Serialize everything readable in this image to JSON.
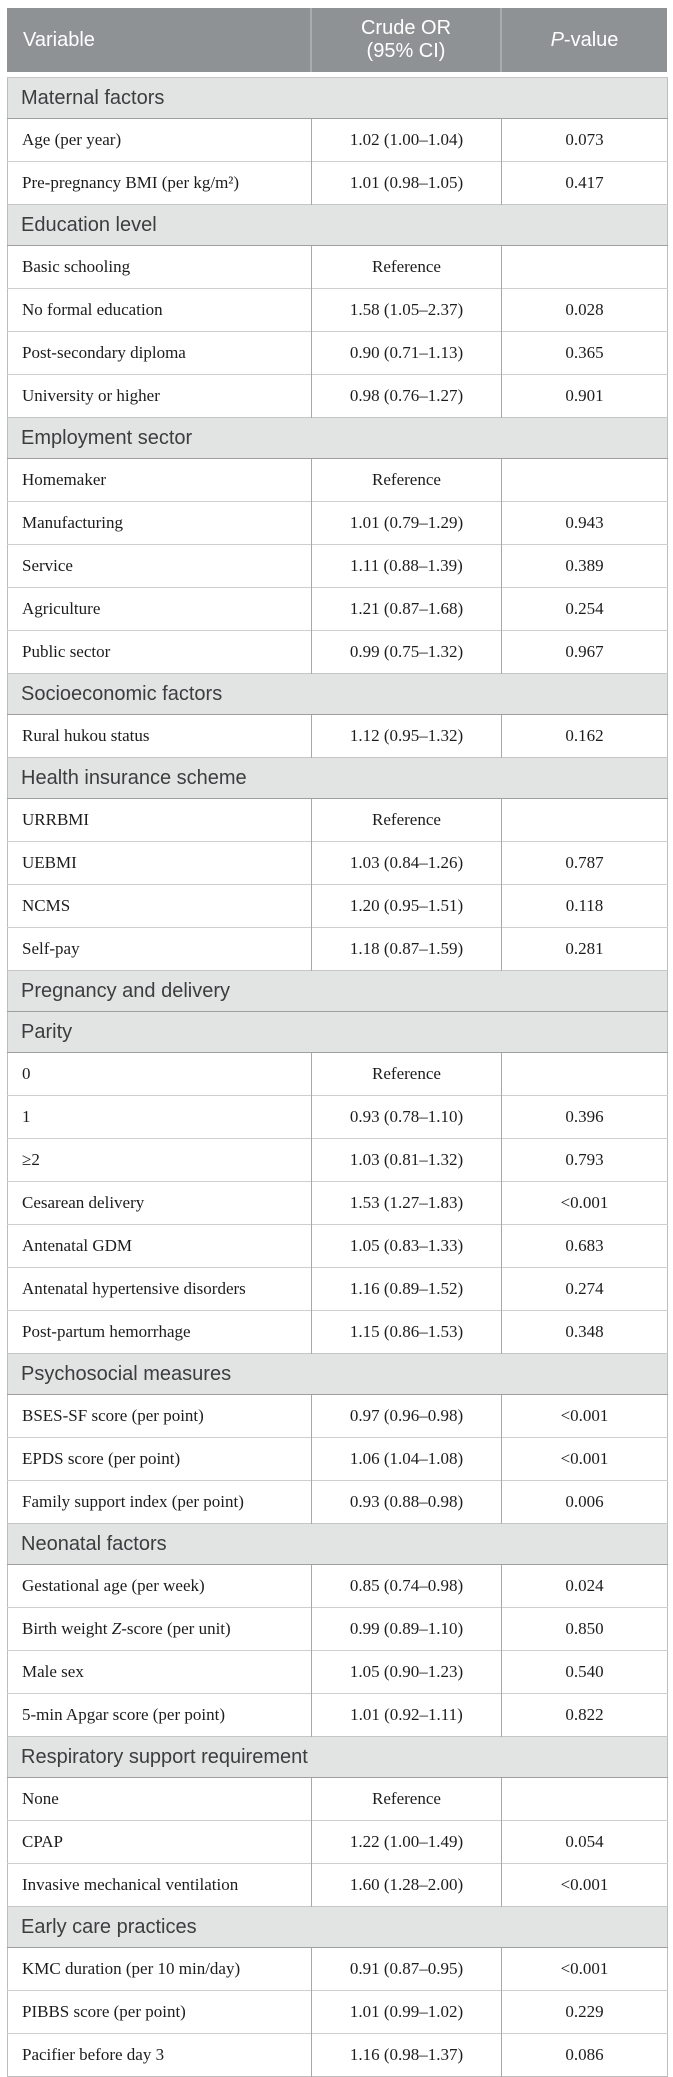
{
  "colors": {
    "header_bg": "#8f9294",
    "header_text": "#ffffff",
    "section_bg": "#e2e3e3",
    "section_text": "#3b3d3f",
    "data_text": "#1c1c1c",
    "grid_line": "#a8a8a8"
  },
  "header": {
    "col_variable": "Variable",
    "col_or_line1": "Crude OR",
    "col_or_line2": "(95% CI)",
    "p_italic": "P",
    "p_rest": "-value"
  },
  "table": {
    "sections": [
      {
        "title": "Maternal factors",
        "rows": [
          {
            "variable": "Age (per year)",
            "or_ci": "1.02 (1.00–1.04)",
            "p": "0.073"
          },
          {
            "variable": "Pre-pregnancy BMI (per kg/m²)",
            "or_ci": "1.01 (0.98–1.05)",
            "p": "0.417"
          }
        ]
      },
      {
        "title": "Education level",
        "rows": [
          {
            "variable": "Basic schooling",
            "or_ci": "Reference",
            "p": ""
          },
          {
            "variable": "No formal education",
            "or_ci": "1.58 (1.05–2.37)",
            "p": "0.028"
          },
          {
            "variable": "Post-secondary diploma",
            "or_ci": "0.90 (0.71–1.13)",
            "p": "0.365"
          },
          {
            "variable": "University or higher",
            "or_ci": "0.98 (0.76–1.27)",
            "p": "0.901"
          }
        ]
      },
      {
        "title": "Employment sector",
        "rows": [
          {
            "variable": "Homemaker",
            "or_ci": "Reference",
            "p": ""
          },
          {
            "variable": "Manufacturing",
            "or_ci": "1.01 (0.79–1.29)",
            "p": "0.943"
          },
          {
            "variable": "Service",
            "or_ci": "1.11 (0.88–1.39)",
            "p": "0.389"
          },
          {
            "variable": "Agriculture",
            "or_ci": "1.21 (0.87–1.68)",
            "p": "0.254"
          },
          {
            "variable": "Public sector",
            "or_ci": "0.99 (0.75–1.32)",
            "p": "0.967"
          }
        ]
      },
      {
        "title": "Socioeconomic factors",
        "rows": [
          {
            "variable": "Rural hukou status",
            "or_ci": "1.12 (0.95–1.32)",
            "p": "0.162"
          }
        ]
      },
      {
        "title": "Health insurance scheme",
        "rows": [
          {
            "variable": "URRBMI",
            "or_ci": "Reference",
            "p": ""
          },
          {
            "variable": "UEBMI",
            "or_ci": "1.03 (0.84–1.26)",
            "p": "0.787"
          },
          {
            "variable": "NCMS",
            "or_ci": "1.20 (0.95–1.51)",
            "p": "0.118"
          },
          {
            "variable": "Self-pay",
            "or_ci": "1.18 (0.87–1.59)",
            "p": "0.281"
          }
        ]
      },
      {
        "title": "Pregnancy and delivery",
        "rows": []
      },
      {
        "title": "Parity",
        "rows": [
          {
            "variable": "0",
            "or_ci": "Reference",
            "p": ""
          },
          {
            "variable": "1",
            "or_ci": "0.93 (0.78–1.10)",
            "p": "0.396"
          },
          {
            "variable": "≥2",
            "or_ci": "1.03 (0.81–1.32)",
            "p": "0.793"
          },
          {
            "variable": "Cesarean delivery",
            "or_ci": "1.53 (1.27–1.83)",
            "p": "<0.001"
          },
          {
            "variable": "Antenatal GDM",
            "or_ci": "1.05 (0.83–1.33)",
            "p": "0.683"
          },
          {
            "variable": "Antenatal hypertensive disorders",
            "or_ci": "1.16 (0.89–1.52)",
            "p": "0.274"
          },
          {
            "variable": "Post-partum hemorrhage",
            "or_ci": "1.15 (0.86–1.53)",
            "p": "0.348"
          }
        ]
      },
      {
        "title": "Psychosocial measures",
        "rows": [
          {
            "variable": "BSES-SF score (per point)",
            "or_ci": "0.97 (0.96–0.98)",
            "p": "<0.001"
          },
          {
            "variable": "EPDS score (per point)",
            "or_ci": "1.06 (1.04–1.08)",
            "p": "<0.001"
          },
          {
            "variable": "Family support index (per point)",
            "or_ci": "0.93 (0.88–0.98)",
            "p": "0.006"
          }
        ]
      },
      {
        "title": "Neonatal factors",
        "rows": [
          {
            "variable": "Gestational age (per week)",
            "or_ci": "0.85 (0.74–0.98)",
            "p": "0.024"
          },
          {
            "variable_parts": {
              "pre": "Birth weight ",
              "italic": "Z",
              "post": "-score (per unit)"
            },
            "or_ci": "0.99 (0.89–1.10)",
            "p": "0.850"
          },
          {
            "variable": "Male sex",
            "or_ci": "1.05 (0.90–1.23)",
            "p": "0.540"
          },
          {
            "variable": "5-min Apgar score (per point)",
            "or_ci": "1.01 (0.92–1.11)",
            "p": "0.822"
          }
        ]
      },
      {
        "title": "Respiratory support requirement",
        "rows": [
          {
            "variable": "None",
            "or_ci": "Reference",
            "p": ""
          },
          {
            "variable": "CPAP",
            "or_ci": "1.22 (1.00–1.49)",
            "p": "0.054"
          },
          {
            "variable": "Invasive mechanical ventilation",
            "or_ci": "1.60 (1.28–2.00)",
            "p": "<0.001"
          }
        ]
      },
      {
        "title": "Early care practices",
        "rows": [
          {
            "variable": "KMC duration (per 10 min/day)",
            "or_ci": "0.91 (0.87–0.95)",
            "p": "<0.001"
          },
          {
            "variable": "PIBBS score (per point)",
            "or_ci": "1.01 (0.99–1.02)",
            "p": "0.229"
          },
          {
            "variable": "Pacifier before day 3",
            "or_ci": "1.16 (0.98–1.37)",
            "p": "0.086"
          }
        ]
      }
    ]
  }
}
